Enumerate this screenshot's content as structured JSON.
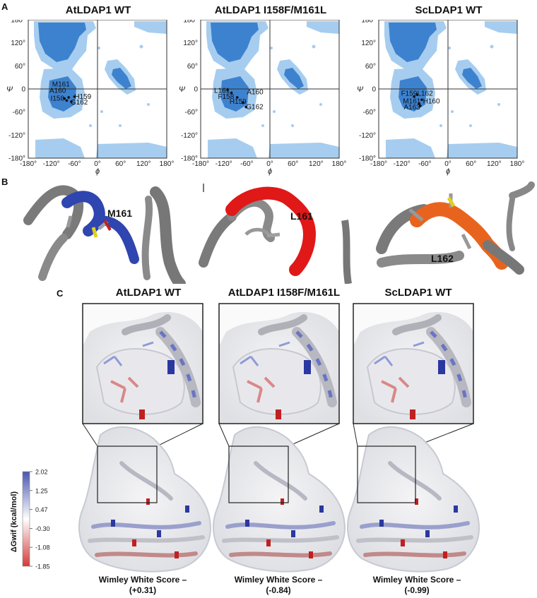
{
  "panels": {
    "a": "A",
    "b": "B",
    "c": "C"
  },
  "ramachandran": [
    {
      "title": "AtLDAP1 WT",
      "labels": [
        {
          "text": "M161",
          "x": -118,
          "y": 12
        },
        {
          "text": "A160",
          "x": -125,
          "y": -5
        },
        {
          "text": "I158",
          "x": -122,
          "y": -25
        },
        {
          "text": "H159",
          "x": -60,
          "y": -20
        },
        {
          "text": "G162",
          "x": -70,
          "y": -35
        }
      ],
      "points": [
        {
          "x": -86,
          "y": -25
        },
        {
          "x": -80,
          "y": -30
        },
        {
          "x": -75,
          "y": -22
        },
        {
          "x": -68,
          "y": -33
        },
        {
          "x": -60,
          "y": -20
        }
      ]
    },
    {
      "title": "AtLDAP1 I158F/M161L",
      "labels": [
        {
          "text": "L161",
          "x": -145,
          "y": -5
        },
        {
          "text": "A160",
          "x": -60,
          "y": -8
        },
        {
          "text": "F158",
          "x": -135,
          "y": -20
        },
        {
          "text": "H159",
          "x": -105,
          "y": -33
        },
        {
          "text": "G162",
          "x": -62,
          "y": -47
        }
      ],
      "points": [
        {
          "x": -110,
          "y": -3
        },
        {
          "x": -100,
          "y": -10
        },
        {
          "x": -85,
          "y": -22
        },
        {
          "x": -70,
          "y": -36
        },
        {
          "x": -62,
          "y": -47
        }
      ]
    },
    {
      "title": "ScLDAP1 WT",
      "labels": [
        {
          "text": "F159",
          "x": -122,
          "y": -12
        },
        {
          "text": "L162",
          "x": -80,
          "y": -12
        },
        {
          "text": "M161",
          "x": -117,
          "y": -32
        },
        {
          "text": "H160",
          "x": -65,
          "y": -32
        },
        {
          "text": "A163",
          "x": -115,
          "y": -48
        }
      ],
      "points": [
        {
          "x": -88,
          "y": -20
        },
        {
          "x": -80,
          "y": -15
        },
        {
          "x": -75,
          "y": -38
        },
        {
          "x": -68,
          "y": -28
        },
        {
          "x": -72,
          "y": -44
        }
      ]
    }
  ],
  "axes": {
    "xticks": [
      "-180°",
      "-120°",
      "-60°",
      "0°",
      "60°",
      "120°",
      "180°"
    ],
    "yticks": [
      "180°",
      "120°",
      "60°",
      "0",
      "-60°",
      "-120°",
      "-180°"
    ],
    "xlabel": "ϕ",
    "ylabel": "Ψ",
    "xlim": [
      -180,
      180
    ],
    "ylim": [
      -180,
      180
    ]
  },
  "structures": [
    {
      "label": "M161",
      "color": "#2f45b0"
    },
    {
      "label": "L161",
      "color": "#e01818"
    },
    {
      "label": "L162",
      "color": "#e8641e"
    }
  ],
  "surfaces": [
    {
      "title": "AtLDAP1 WT",
      "score_line1": "Wimley White Score –",
      "score_line2": "(+0.31)"
    },
    {
      "title": "AtLDAP1 I158F/M161L",
      "score_line1": "Wimley White Score –",
      "score_line2": "(-0.84)"
    },
    {
      "title": "ScLDAP1 WT",
      "score_line1": "Wimley White Score –",
      "score_line2": "(-0.99)"
    }
  ],
  "colorbar": {
    "title": "ΔGwif (kcal/mol)",
    "ticks": [
      "2.02",
      "1.25",
      "0.47",
      "-0.30",
      "-1.08",
      "-1.85"
    ],
    "top_color": "#4a56b0",
    "mid_color": "#ffffff",
    "bottom_color": "#d43a3a"
  },
  "colors": {
    "rama_dark": "#3d82cf",
    "rama_light": "#a6cdef"
  }
}
